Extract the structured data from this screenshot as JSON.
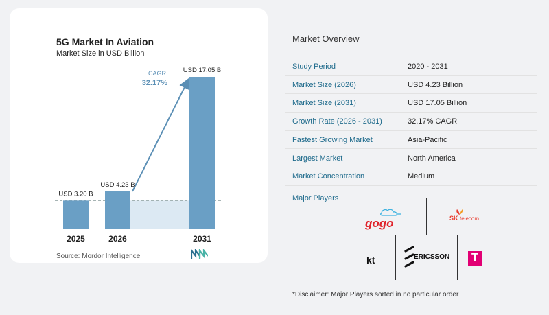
{
  "chart_data": {
    "type": "bar",
    "title": "5G Market In Aviation",
    "subtitle": "Market Size in USD Billion",
    "categories": [
      "2025",
      "2026",
      "2031"
    ],
    "values": [
      3.2,
      4.23,
      17.05
    ],
    "value_labels": [
      "USD 3.20 B",
      "USD 4.23 B",
      "USD 17.05 B"
    ],
    "cagr_label": "CAGR",
    "cagr_value": "32.17%",
    "ylim": [
      0,
      17.05
    ],
    "colors": {
      "bar": "#6a9fc5",
      "bar_top": "#5a90b8",
      "band": "#dce9f3",
      "arrow": "#5b8fb5",
      "cagr_text": "#5b8fb5"
    }
  },
  "source": "Source:  Mordor Intelligence",
  "overview": {
    "title": "Market Overview",
    "rows": [
      {
        "label": "Study Period",
        "value": "2020 - 2031"
      },
      {
        "label": "Market Size (2026)",
        "value": "USD 4.23 Billion"
      },
      {
        "label": "Market Size (2031)",
        "value": "USD 17.05 Billion"
      },
      {
        "label": "Growth Rate (2026 - 2031)",
        "value": "32.17% CAGR"
      },
      {
        "label": "Fastest Growing Market",
        "value": "Asia-Pacific"
      },
      {
        "label": "Largest Market",
        "value": "North America"
      },
      {
        "label": "Market Concentration",
        "value": "Medium"
      }
    ]
  },
  "major_players": {
    "title": "Major Players",
    "logos": {
      "gogo": "gogo",
      "sk_prefix": "SK",
      "sk_suffix": "telecom",
      "kt": "kt",
      "ericsson": "ERICSSON",
      "tmobile": "T"
    }
  },
  "disclaimer": "*Disclaimer: Major Players sorted in no particular order"
}
